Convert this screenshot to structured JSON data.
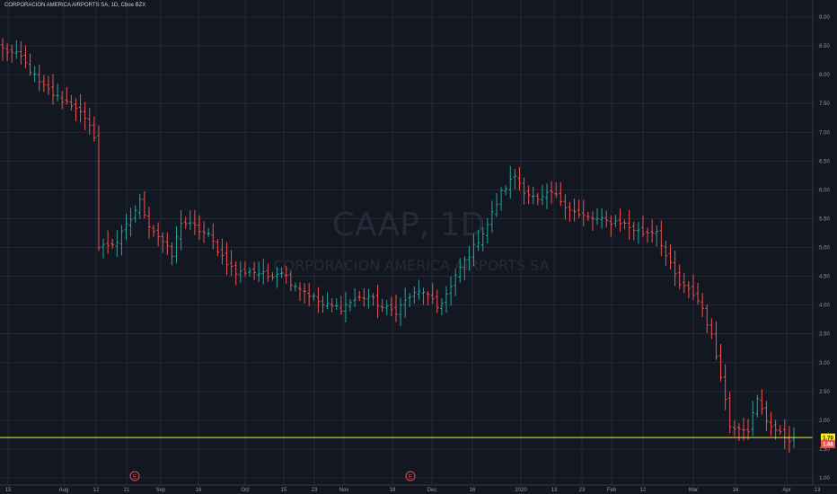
{
  "header": {
    "title": "CORPORACION AMERICA AIRPORTS SA, 1D, Cboe BZX"
  },
  "watermark": {
    "symbol": "CAAP, 1D",
    "name": "CORPORACION AMERICA AIRPORTS SA"
  },
  "colors": {
    "background": "#131722",
    "up": "#26a69a",
    "down": "#ef5350",
    "grid": "#2a2e39",
    "hline": "#f5f50a",
    "text": "#9598a1"
  },
  "hline_value": 1.7,
  "hline_label": "1.70",
  "last_price_label": "1.68",
  "earnings_marker": "E",
  "chart_data": {
    "type": "ohlc",
    "title": "CORPORACION AMERICA AIRPORTS SA, 1D, Cboe BZX",
    "ylim": [
      1.0,
      9.0
    ],
    "y_ticks": [
      "9.00",
      "8.50",
      "8.00",
      "7.50",
      "7.00",
      "6.50",
      "6.00",
      "5.50",
      "5.00",
      "4.50",
      "4.00",
      "3.50",
      "3.00",
      "2.50",
      "2.00",
      "1.50",
      "1.00"
    ],
    "x_ticks": [
      "15",
      "Aug",
      "12",
      "21",
      "Sep",
      "16",
      "Oct",
      "15",
      "23",
      "Nov",
      "18",
      "Dec",
      "16",
      "2020",
      "13",
      "23",
      "Feb",
      "12",
      "Mar",
      "16",
      "Apr",
      "13"
    ],
    "grid": true,
    "legend": "none",
    "earnings_events": [
      "2019-08-21",
      "2019-11-18"
    ],
    "waypoints": [
      [
        0,
        8.45
      ],
      [
        4,
        8.3
      ],
      [
        8,
        7.85
      ],
      [
        12,
        7.6
      ],
      [
        16,
        7.45
      ],
      [
        20,
        6.95
      ],
      [
        21,
        5.0
      ],
      [
        25,
        5.1
      ],
      [
        28,
        5.5
      ],
      [
        30,
        5.8
      ],
      [
        32,
        5.4
      ],
      [
        35,
        5.1
      ],
      [
        37,
        4.85
      ],
      [
        39,
        5.45
      ],
      [
        42,
        5.35
      ],
      [
        45,
        5.2
      ],
      [
        48,
        4.85
      ],
      [
        51,
        4.55
      ],
      [
        54,
        4.6
      ],
      [
        58,
        4.5
      ],
      [
        61,
        4.6
      ],
      [
        63,
        4.4
      ],
      [
        66,
        4.25
      ],
      [
        70,
        4.0
      ],
      [
        74,
        3.95
      ],
      [
        77,
        4.1
      ],
      [
        80,
        4.15
      ],
      [
        83,
        3.95
      ],
      [
        86,
        3.9
      ],
      [
        89,
        4.15
      ],
      [
        92,
        4.25
      ],
      [
        95,
        3.95
      ],
      [
        98,
        4.3
      ],
      [
        100,
        4.65
      ],
      [
        103,
        5.0
      ],
      [
        106,
        5.4
      ],
      [
        109,
        5.95
      ],
      [
        112,
        6.25
      ],
      [
        114,
        6.0
      ],
      [
        117,
        5.8
      ],
      [
        120,
        5.95
      ],
      [
        123,
        5.75
      ],
      [
        126,
        5.55
      ],
      [
        129,
        5.5
      ],
      [
        132,
        5.45
      ],
      [
        135,
        5.45
      ],
      [
        137,
        5.35
      ],
      [
        140,
        5.25
      ],
      [
        143,
        5.3
      ],
      [
        145,
        4.85
      ],
      [
        148,
        4.35
      ],
      [
        151,
        4.2
      ],
      [
        153,
        3.95
      ],
      [
        155,
        3.45
      ],
      [
        157,
        2.8
      ],
      [
        159,
        1.9
      ],
      [
        161,
        1.9
      ],
      [
        163,
        1.85
      ],
      [
        165,
        2.35
      ],
      [
        167,
        2.0
      ],
      [
        170,
        1.75
      ],
      [
        173,
        1.65
      ]
    ],
    "series_note": "daily OHLC bars, values approximated from the plotted price axis"
  }
}
